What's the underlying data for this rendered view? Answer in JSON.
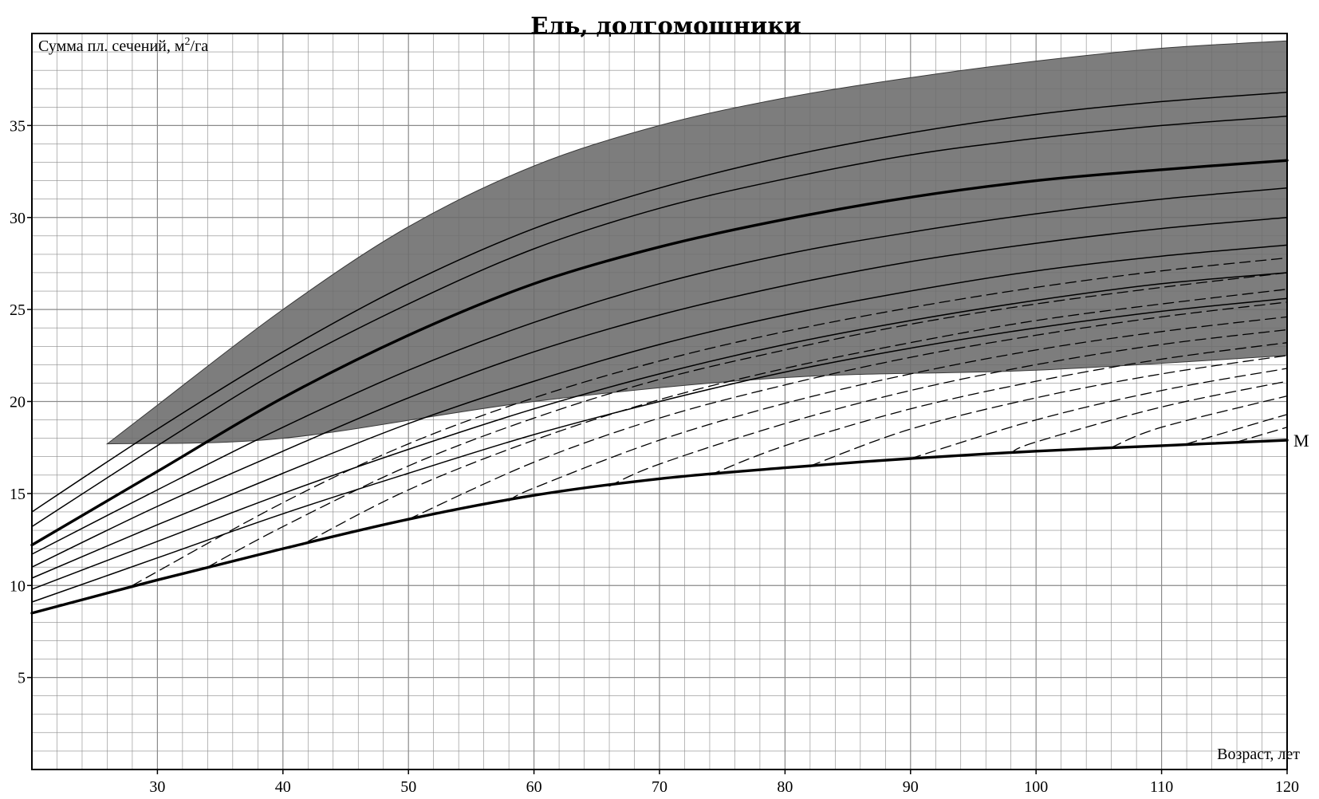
{
  "chart_data": {
    "type": "line",
    "title": "Ель, долгомошники",
    "xlabel": "Возраст, лет",
    "ylabel_main": "Сумма пл. сечений, м",
    "ylabel_sup": "2",
    "ylabel_tail": "/га",
    "xlim": [
      20,
      120
    ],
    "ylim": [
      0,
      40
    ],
    "x_ticks": [
      30,
      40,
      50,
      60,
      70,
      80,
      90,
      100,
      110,
      120
    ],
    "y_ticks": [
      5,
      10,
      15,
      20,
      25,
      30,
      35
    ],
    "grid": true,
    "colors": {
      "shaded_region": "#6b6b6b",
      "lines": "#000000",
      "grid": "#8a8a8a"
    },
    "shaded_region": {
      "upper": {
        "x": [
          26,
          30,
          40,
          50,
          60,
          70,
          80,
          90,
          100,
          110,
          120
        ],
        "y": [
          17.7,
          19.8,
          25.0,
          29.5,
          32.8,
          35.0,
          36.5,
          37.6,
          38.5,
          39.2,
          39.6
        ]
      },
      "lower": {
        "x": [
          26,
          40,
          60,
          80,
          100,
          120
        ],
        "y": [
          17.7,
          18.0,
          20.0,
          21.3,
          21.7,
          22.5
        ]
      }
    },
    "series": [
      {
        "label": "M",
        "style": "bold",
        "x": [
          20,
          30,
          40,
          50,
          60,
          70,
          80,
          90,
          100,
          110,
          120
        ],
        "y": [
          8.5,
          10.3,
          12.0,
          13.6,
          14.9,
          15.8,
          16.4,
          16.9,
          17.3,
          17.6,
          17.9
        ]
      },
      {
        "style": "bold",
        "x": [
          20,
          30,
          40,
          50,
          60,
          70,
          80,
          90,
          100,
          110,
          120
        ],
        "y": [
          12.2,
          16.2,
          20.2,
          23.6,
          26.4,
          28.4,
          29.9,
          31.1,
          32.0,
          32.6,
          33.1
        ]
      },
      {
        "style": "solid",
        "x": [
          20,
          30,
          40,
          50,
          60,
          70,
          80,
          90,
          100,
          110,
          120
        ],
        "y": [
          14.0,
          18.5,
          22.7,
          26.4,
          29.4,
          31.6,
          33.3,
          34.6,
          35.6,
          36.3,
          36.8
        ]
      },
      {
        "style": "solid",
        "x": [
          20,
          30,
          40,
          50,
          60,
          70,
          80,
          90,
          100,
          110,
          120
        ],
        "y": [
          13.2,
          17.6,
          21.8,
          25.3,
          28.3,
          30.5,
          32.1,
          33.4,
          34.3,
          35.0,
          35.5
        ]
      },
      {
        "style": "solid",
        "x": [
          20,
          30,
          40,
          50,
          60,
          70,
          80,
          90,
          100,
          110,
          120
        ],
        "y": [
          11.7,
          15.2,
          18.6,
          21.7,
          24.3,
          26.4,
          28.0,
          29.2,
          30.2,
          31.0,
          31.6
        ]
      },
      {
        "style": "solid",
        "x": [
          20,
          30,
          40,
          50,
          60,
          70,
          80,
          90,
          100,
          110,
          120
        ],
        "y": [
          11.0,
          14.3,
          17.3,
          20.2,
          22.7,
          24.7,
          26.3,
          27.6,
          28.6,
          29.4,
          30.0
        ]
      },
      {
        "style": "solid",
        "x": [
          20,
          30,
          40,
          50,
          60,
          70,
          80,
          90,
          100,
          110,
          120
        ],
        "y": [
          10.4,
          13.3,
          16.1,
          18.8,
          21.1,
          23.1,
          24.7,
          26.0,
          27.1,
          27.9,
          28.5
        ]
      },
      {
        "style": "solid",
        "x": [
          20,
          30,
          40,
          50,
          60,
          70,
          80,
          90,
          100,
          110,
          120
        ],
        "y": [
          9.8,
          12.4,
          15.0,
          17.4,
          19.6,
          21.5,
          23.1,
          24.4,
          25.5,
          26.4,
          27.0
        ]
      },
      {
        "style": "solid",
        "x": [
          20,
          30,
          40,
          50,
          60,
          70,
          80,
          90,
          100,
          110,
          120
        ],
        "y": [
          9.1,
          11.5,
          13.9,
          16.1,
          18.2,
          20.0,
          21.6,
          22.9,
          24.0,
          24.9,
          25.6
        ]
      },
      {
        "style": "dashed",
        "x": [
          28,
          40,
          50,
          60,
          70,
          80,
          90,
          100,
          110,
          120
        ],
        "y": [
          10.0,
          14.5,
          17.7,
          20.2,
          22.2,
          23.8,
          25.1,
          26.2,
          27.1,
          27.8
        ]
      },
      {
        "style": "dashed",
        "x": [
          34,
          40,
          50,
          60,
          70,
          80,
          90,
          100,
          110,
          120
        ],
        "y": [
          11.0,
          13.2,
          16.5,
          19.1,
          21.2,
          22.8,
          24.2,
          25.3,
          26.2,
          27.0
        ]
      },
      {
        "style": "dashed",
        "x": [
          42,
          50,
          60,
          70,
          80,
          90,
          100,
          110,
          120
        ],
        "y": [
          12.4,
          15.2,
          17.9,
          20.1,
          21.8,
          23.2,
          24.4,
          25.3,
          26.1
        ]
      },
      {
        "style": "dashed",
        "x": [
          50,
          60,
          70,
          80,
          90,
          100,
          110,
          120
        ],
        "y": [
          13.6,
          16.7,
          19.1,
          20.9,
          22.4,
          23.6,
          24.6,
          25.4
        ]
      },
      {
        "style": "dashed",
        "x": [
          58,
          60,
          70,
          80,
          90,
          100,
          110,
          120
        ],
        "y": [
          14.6,
          15.3,
          17.9,
          19.9,
          21.5,
          22.8,
          23.8,
          24.6
        ]
      },
      {
        "style": "dashed",
        "x": [
          66,
          70,
          80,
          90,
          100,
          110,
          120
        ],
        "y": [
          15.4,
          16.6,
          18.8,
          20.6,
          22.0,
          23.1,
          23.9
        ]
      },
      {
        "style": "dashed",
        "x": [
          74,
          80,
          90,
          100,
          110,
          120
        ],
        "y": [
          16.0,
          17.6,
          19.6,
          21.1,
          22.3,
          23.2
        ]
      },
      {
        "style": "dashed",
        "x": [
          82,
          90,
          100,
          110,
          120
        ],
        "y": [
          16.5,
          18.5,
          20.2,
          21.5,
          22.5
        ]
      },
      {
        "style": "dashed",
        "x": [
          90,
          100,
          110,
          120
        ],
        "y": [
          16.9,
          19.0,
          20.6,
          21.8
        ]
      },
      {
        "style": "dashed",
        "x": [
          98,
          100,
          110,
          120
        ],
        "y": [
          17.2,
          17.8,
          19.7,
          21.1
        ]
      },
      {
        "style": "dashed",
        "x": [
          106,
          110,
          120
        ],
        "y": [
          17.5,
          18.6,
          20.3
        ]
      },
      {
        "style": "dashed",
        "x": [
          112,
          120
        ],
        "y": [
          17.7,
          19.3
        ]
      },
      {
        "style": "dashed",
        "x": [
          116,
          120
        ],
        "y": [
          17.8,
          18.6
        ]
      }
    ]
  }
}
